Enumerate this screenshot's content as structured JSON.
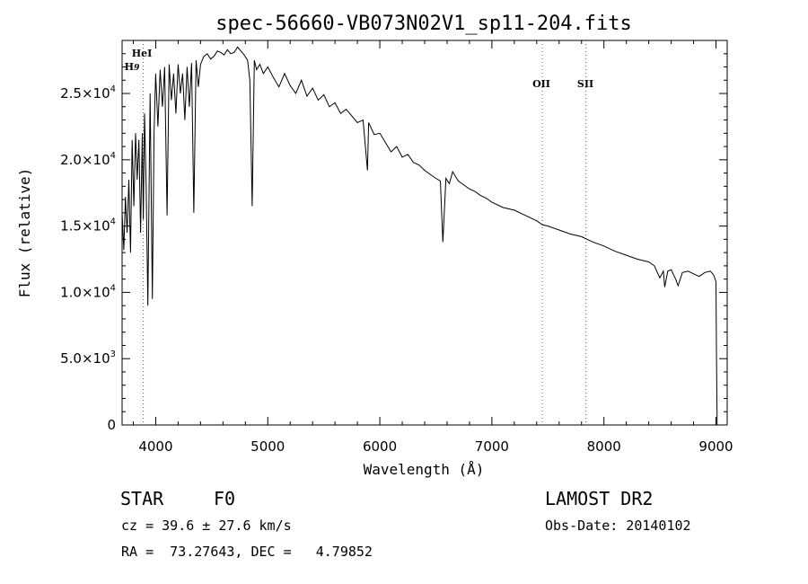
{
  "chart_data": {
    "type": "line",
    "title": "spec-56660-VB073N02V1_sp11-204.fits",
    "xlabel": "Wavelength (Å)",
    "ylabel": "Flux (relative)",
    "xlim": [
      3700,
      9100
    ],
    "ylim": [
      0,
      29000
    ],
    "x_ticks": [
      4000,
      5000,
      6000,
      7000,
      8000,
      9000
    ],
    "y_ticks": [
      {
        "value": 0,
        "label": "0"
      },
      {
        "value": 5000,
        "label_base": "5.0×10",
        "label_exp": "3"
      },
      {
        "value": 10000,
        "label_base": "1.0×10",
        "label_exp": "4"
      },
      {
        "value": 15000,
        "label_base": "1.5×10",
        "label_exp": "4"
      },
      {
        "value": 20000,
        "label_base": "2.0×10",
        "label_exp": "4"
      },
      {
        "value": 25000,
        "label_base": "2.5×10",
        "label_exp": "4"
      }
    ],
    "reference_lines": [
      {
        "label": "HeI",
        "wavelength": 3889
      },
      {
        "label": "H9",
        "wavelength": 3835
      },
      {
        "label": "OII",
        "wavelength": 7450
      },
      {
        "label": "SII",
        "wavelength": 7840
      }
    ],
    "series": [
      {
        "x": [
          3700,
          3715,
          3730,
          3745,
          3760,
          3775,
          3790,
          3805,
          3820,
          3835,
          3850,
          3865,
          3880,
          3889,
          3900,
          3915,
          3930,
          3950,
          3970,
          3985,
          4000,
          4020,
          4040,
          4060,
          4080,
          4101,
          4120,
          4140,
          4160,
          4180,
          4200,
          4220,
          4240,
          4260,
          4280,
          4300,
          4320,
          4340,
          4360,
          4380,
          4400,
          4430,
          4460,
          4490,
          4520,
          4550,
          4580,
          4610,
          4640,
          4670,
          4700,
          4730,
          4760,
          4790,
          4820,
          4840,
          4861,
          4880,
          4900,
          4930,
          4960,
          5000,
          5050,
          5100,
          5150,
          5200,
          5250,
          5300,
          5350,
          5400,
          5450,
          5500,
          5550,
          5600,
          5650,
          5700,
          5750,
          5800,
          5850,
          5890,
          5900,
          5950,
          6000,
          6050,
          6100,
          6150,
          6200,
          6250,
          6300,
          6350,
          6400,
          6450,
          6500,
          6540,
          6563,
          6590,
          6620,
          6650,
          6700,
          6750,
          6800,
          6850,
          6900,
          6950,
          7000,
          7100,
          7200,
          7300,
          7400,
          7450,
          7500,
          7600,
          7700,
          7800,
          7900,
          8000,
          8100,
          8200,
          8300,
          8400,
          8450,
          8498,
          8530,
          8542,
          8570,
          8600,
          8640,
          8662,
          8700,
          8750,
          8800,
          8850,
          8900,
          8950,
          8980,
          9000,
          9005,
          9010
        ],
        "y": [
          16000,
          13200,
          17200,
          14500,
          18500,
          13000,
          21500,
          16500,
          22000,
          18500,
          21500,
          14500,
          22000,
          15500,
          23500,
          18000,
          9000,
          25000,
          9500,
          22000,
          26500,
          22500,
          26800,
          24000,
          27000,
          15800,
          27200,
          24500,
          26500,
          23500,
          27200,
          25000,
          26500,
          23000,
          27000,
          24000,
          27300,
          16000,
          27500,
          25500,
          27200,
          27800,
          28000,
          27600,
          27800,
          28200,
          28100,
          27900,
          28300,
          28000,
          28100,
          28500,
          28200,
          27900,
          27500,
          26000,
          16500,
          27500,
          26800,
          27200,
          26500,
          27000,
          26200,
          25500,
          26500,
          25600,
          25000,
          26000,
          24800,
          25400,
          24500,
          24900,
          24000,
          24300,
          23500,
          23800,
          23300,
          22800,
          23000,
          19200,
          22800,
          21900,
          22000,
          21300,
          20600,
          21000,
          20200,
          20400,
          19800,
          19600,
          19200,
          18900,
          18600,
          18400,
          13800,
          18600,
          18200,
          19100,
          18400,
          18100,
          17800,
          17600,
          17300,
          17100,
          16800,
          16400,
          16200,
          15800,
          15400,
          15100,
          15000,
          14700,
          14400,
          14200,
          13800,
          13500,
          13100,
          12800,
          12500,
          12300,
          12000,
          11100,
          11600,
          10400,
          11600,
          11700,
          11000,
          10500,
          11500,
          11600,
          11400,
          11200,
          11500,
          11600,
          11300,
          10800,
          5000,
          0
        ]
      }
    ]
  },
  "info": {
    "object_type": "STAR",
    "subclass": "F0",
    "survey": "LAMOST DR2",
    "cz": "cz = 39.6 ± 27.6 km/s",
    "obs_date": "Obs-Date: 20140102",
    "coords": "RA =  73.27643, DEC =   4.79852"
  },
  "colors": {
    "foreground": "#000000",
    "background": "#ffffff"
  }
}
